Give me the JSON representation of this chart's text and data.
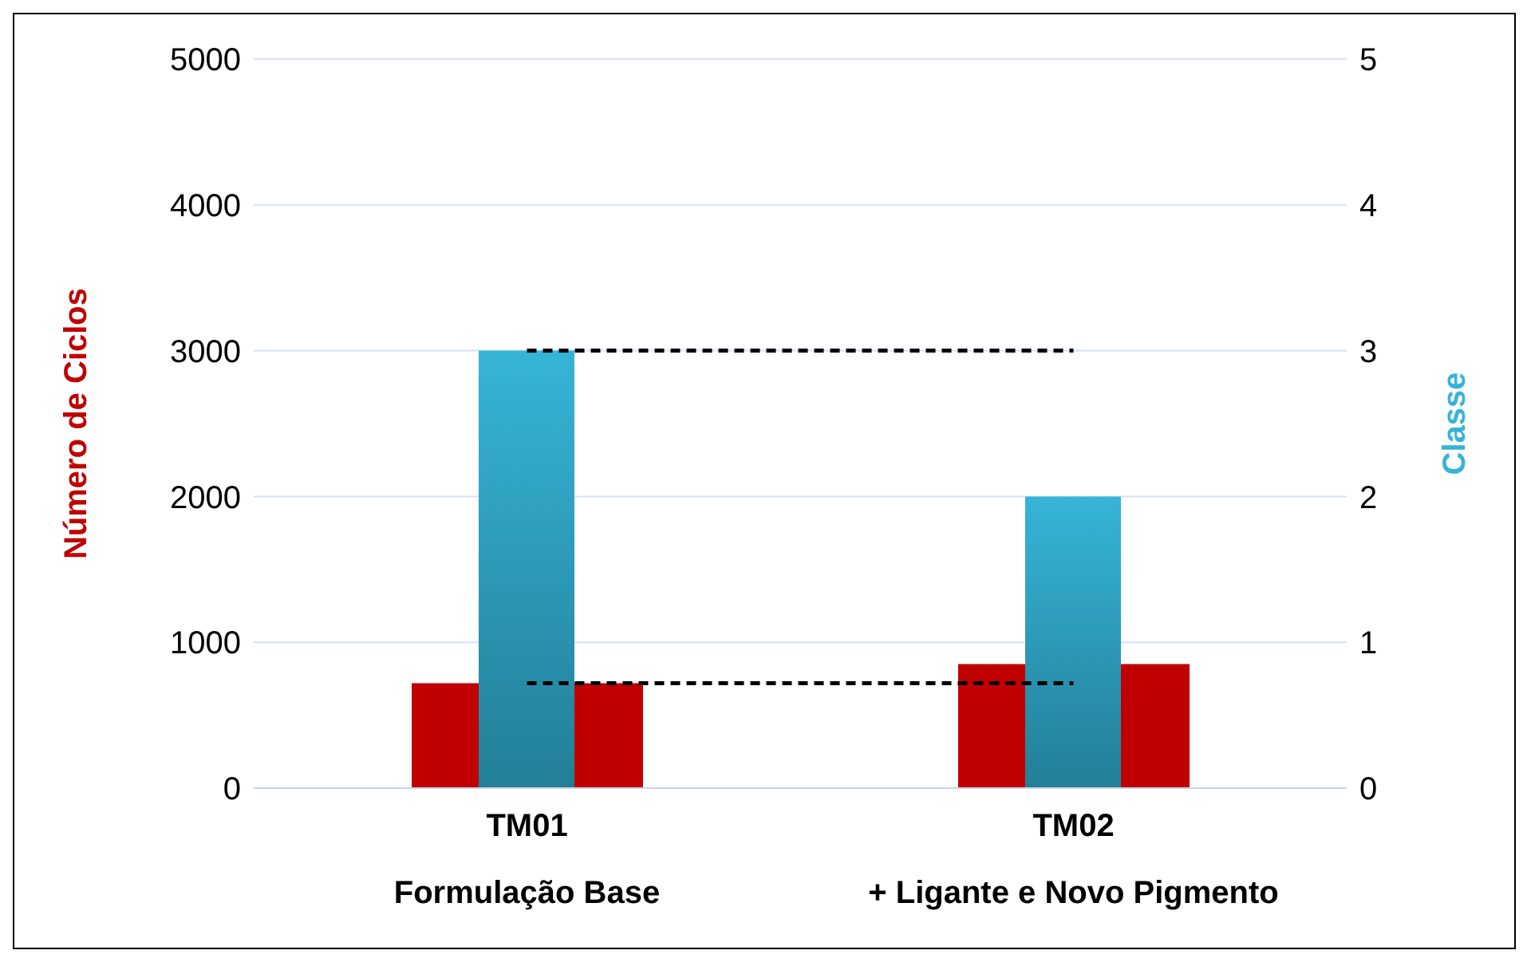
{
  "chart_data": {
    "type": "bar",
    "categories": [
      "TM01\nFormulação Base",
      "TM02\n+ Ligante e Novo Pigmento"
    ],
    "series": [
      {
        "color": "#c00000",
        "values": [
          720,
          850
        ]
      },
      {
        "color": "#36b4d8",
        "values": [
          3,
          2
        ],
        "axis": "y2"
      },
      {
        "type": "line",
        "color": "#000000",
        "values": [
          720,
          720
        ],
        "line_style": "dashed",
        "marker": "none"
      },
      {
        "type": "line",
        "color": "#000000",
        "values": [
          3,
          3
        ],
        "axis": "y2",
        "line_style": "dashed",
        "marker": "none"
      }
    ],
    "ylabel": "Número de Ciclos",
    "y2label": "Classe",
    "ylim": [
      0,
      5000
    ],
    "yticks": [
      0,
      1000,
      2000,
      3000,
      4000,
      5000
    ],
    "y2lim": [
      0,
      5
    ],
    "y2ticks": [
      0,
      1,
      2,
      3,
      4,
      5
    ],
    "grid": "y"
  }
}
